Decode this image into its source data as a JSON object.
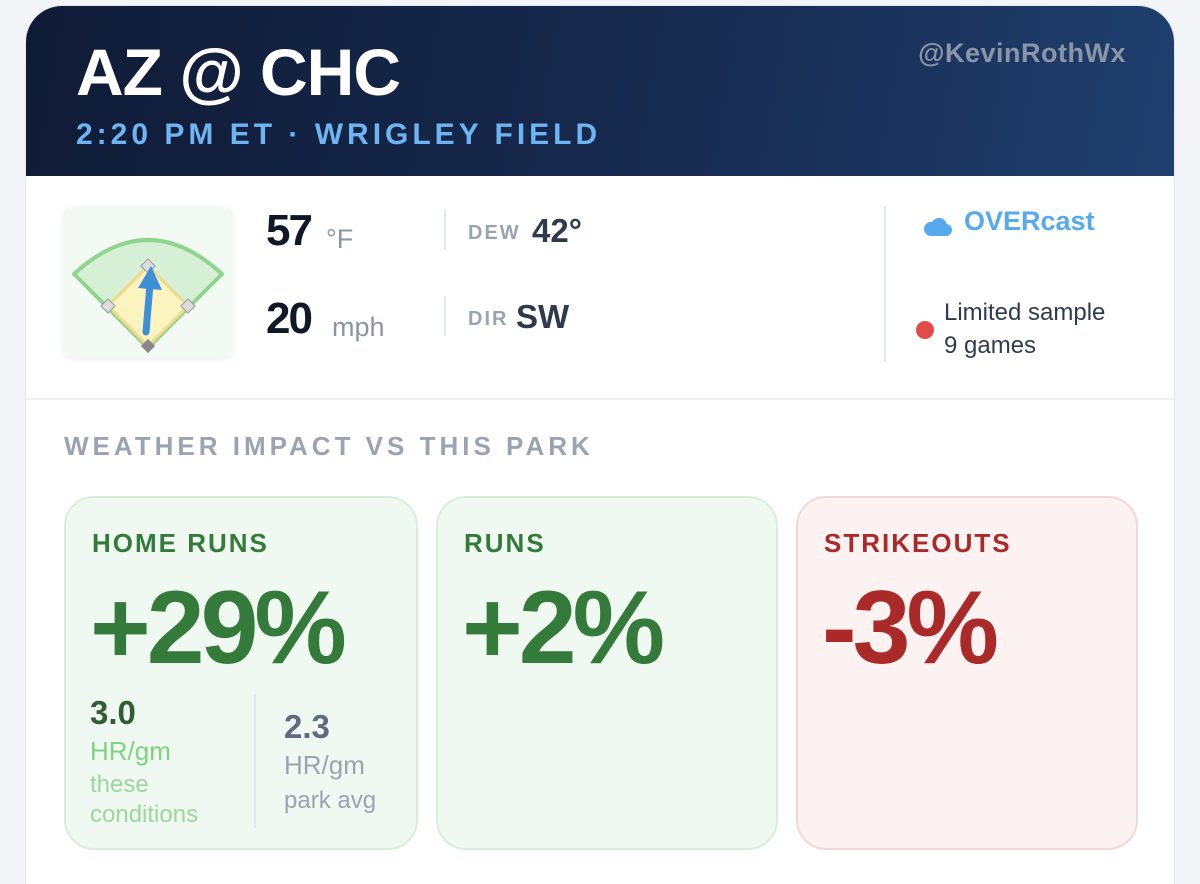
{
  "header": {
    "matchup": "AZ @ CHC",
    "handle": "@KevinRothWx",
    "subtitle": "2:20 PM ET · WRIGLEY FIELD"
  },
  "conditions": {
    "temperature": {
      "value": "57",
      "unit": "°F"
    },
    "wind_speed": {
      "value": "20",
      "unit": "mph"
    },
    "dew": {
      "label": "DEW",
      "value": "42°"
    },
    "direction": {
      "label": "DIR",
      "value": "SW"
    },
    "sky": {
      "icon": "cloud-icon",
      "text": "OVERcast"
    },
    "sample": {
      "line1": "Limited sample",
      "line2": "9 games",
      "status_color": "#e34a4a"
    }
  },
  "impact": {
    "title": "WEATHER IMPACT VS THIS PARK",
    "home_runs": {
      "label": "HOME RUNS",
      "value": "+29%",
      "conditions_value": "3.0",
      "conditions_unit": "HR/gm",
      "conditions_note_1": "these",
      "conditions_note_2": "conditions",
      "park_value": "2.3",
      "park_unit": "HR/gm",
      "park_note": "park avg"
    },
    "runs": {
      "label": "RUNS",
      "value": "+2%"
    },
    "strikeouts": {
      "label": "STRIKEOUTS",
      "value": "-3%"
    }
  },
  "colors": {
    "header_dark": "#0f1b36",
    "accent_blue": "#6eb4f2",
    "positive_green": "#347a3a",
    "negative_red": "#aa2a2a"
  }
}
